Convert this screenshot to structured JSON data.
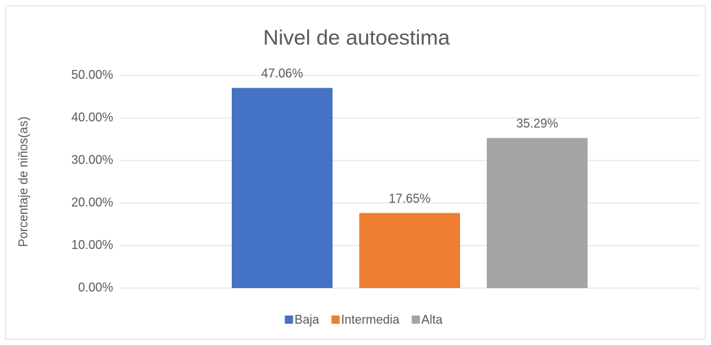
{
  "chart_data": {
    "type": "bar",
    "title": "Nivel de autoestima",
    "y_label": "Porcentaje de niños(as)",
    "categories": [
      null
    ],
    "series": [
      {
        "name": "Baja",
        "color": "#4472c4",
        "values": [
          47.06
        ],
        "value_labels": [
          "47.06%"
        ]
      },
      {
        "name": "Intermedia",
        "color": "#ed7d31",
        "values": [
          17.65
        ],
        "value_labels": [
          "17.65%"
        ]
      },
      {
        "name": "Alta",
        "color": "#a5a5a5",
        "values": [
          35.29
        ],
        "value_labels": [
          "35.29%"
        ]
      }
    ],
    "ylim": [
      0,
      50
    ],
    "yticks": [
      {
        "value": 0,
        "label": "0.00%"
      },
      {
        "value": 10,
        "label": "10.00%"
      },
      {
        "value": 20,
        "label": "20.00%"
      },
      {
        "value": 30,
        "label": "30.00%"
      },
      {
        "value": 40,
        "label": "40.00%"
      },
      {
        "value": 50,
        "label": "50.00%"
      }
    ],
    "grid": true,
    "legend": "bottom"
  }
}
